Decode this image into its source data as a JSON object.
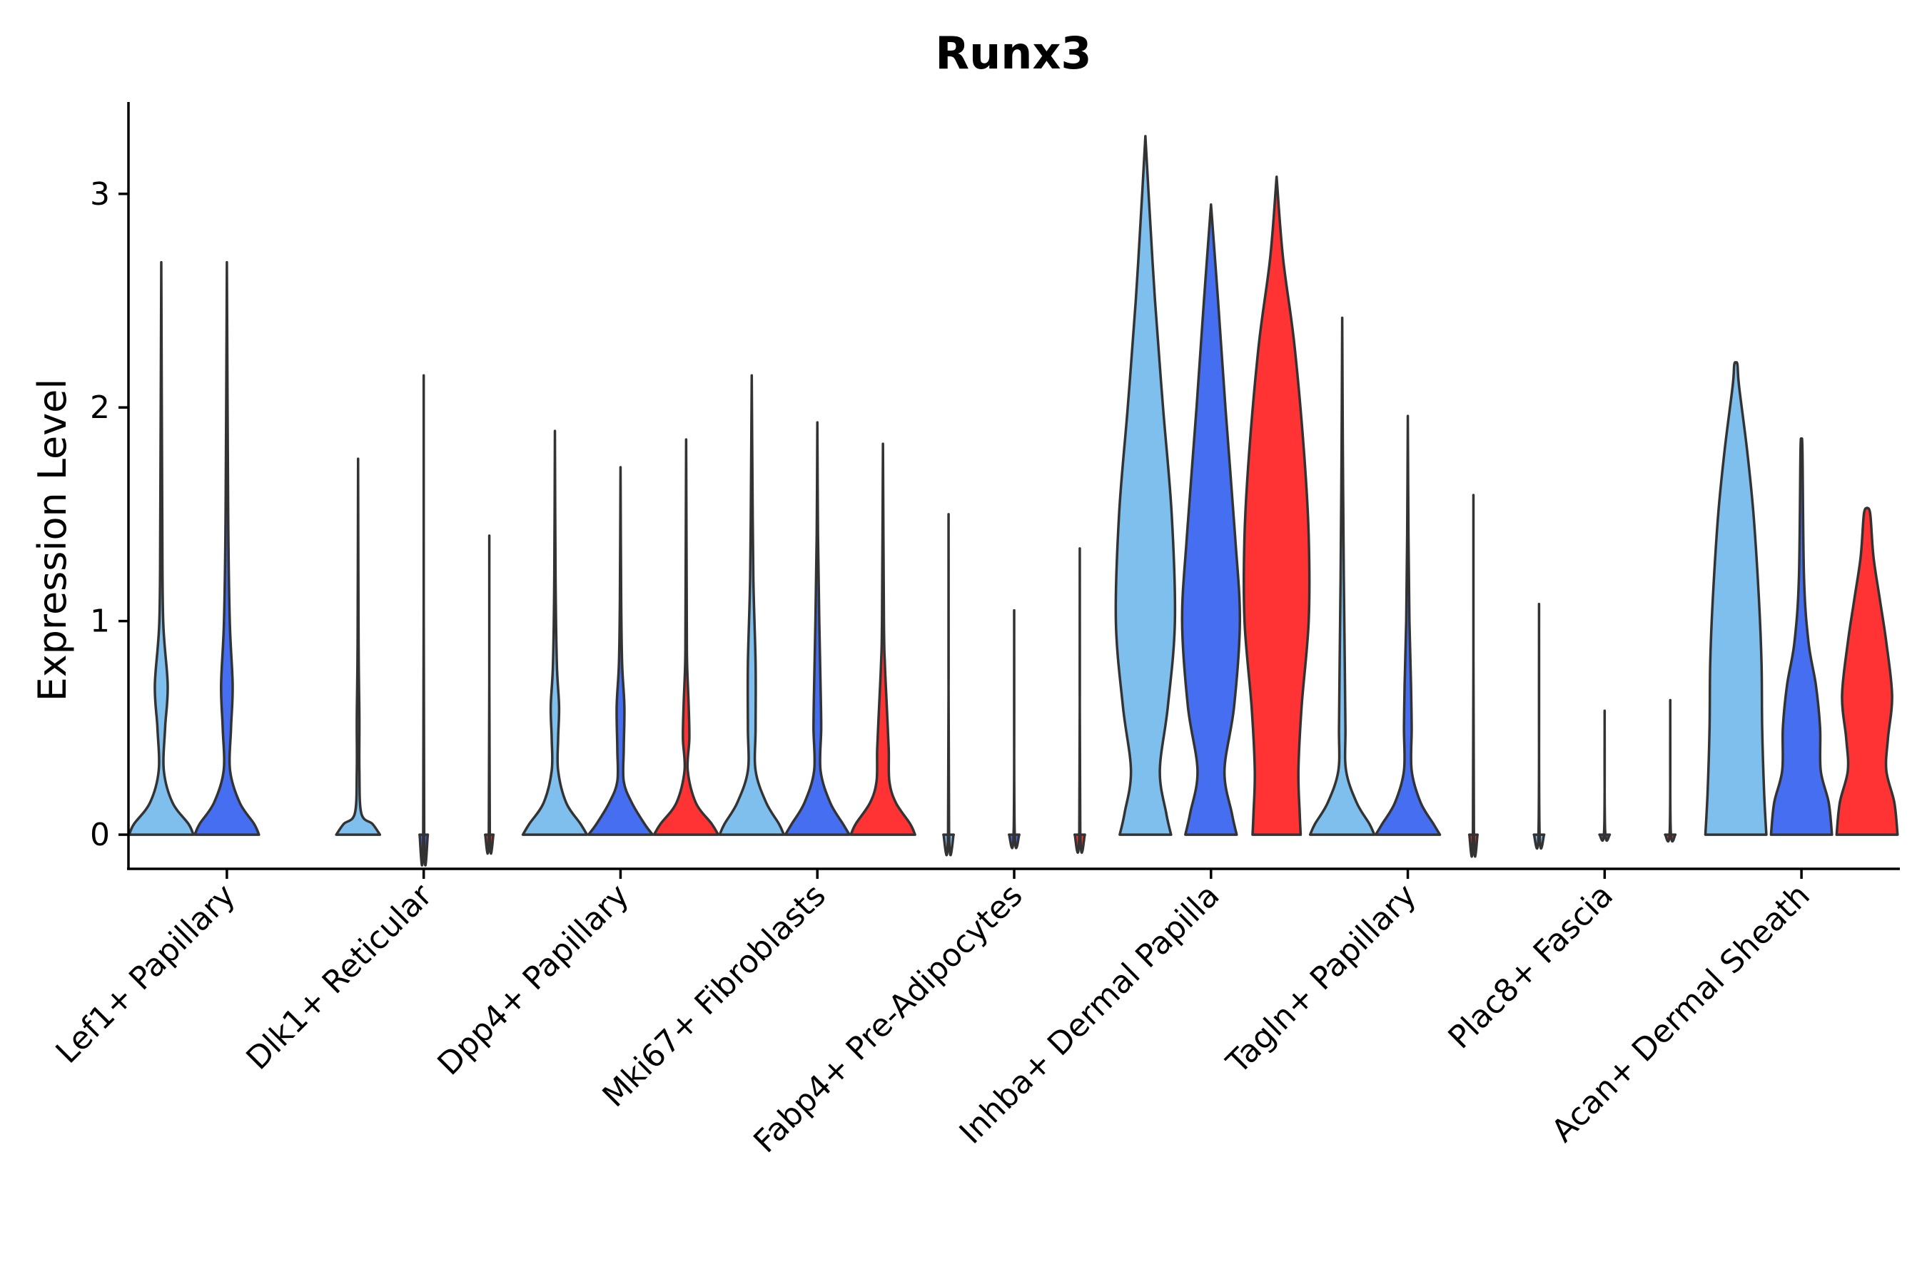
{
  "chart_data": {
    "type": "violin",
    "title": "Runx3",
    "xlabel": "",
    "ylabel": "Expression Level",
    "ylim": [
      -0.16,
      3.43
    ],
    "yticks": [
      0,
      1,
      2,
      3
    ],
    "grid": false,
    "legend": "none",
    "colors": [
      "#7fbfed",
      "#456ff0",
      "#ff3333"
    ],
    "categories": [
      "Lef1+ Papillary",
      "Dlk1+ Reticular",
      "Dpp4+ Papillary",
      "Mki67+ Fibroblasts",
      "Fabp4+ Pre-Adipocytes",
      "Inhba+ Dermal Papilla",
      "Tagln+ Papillary",
      "Plac8+ Fascia",
      "Acan+ Dermal Sheath"
    ],
    "violins": [
      {
        "category": "Lef1+ Papillary",
        "group": 0,
        "max": 2.68,
        "profile": [
          [
            0,
            1
          ],
          [
            0.05,
            0.85
          ],
          [
            0.15,
            0.35
          ],
          [
            0.3,
            0.08
          ],
          [
            0.5,
            0.12
          ],
          [
            0.7,
            0.2
          ],
          [
            1.0,
            0.06
          ],
          [
            1.5,
            0.03
          ],
          [
            2.68,
            0
          ]
        ]
      },
      {
        "category": "Lef1+ Papillary",
        "group": 1,
        "max": 2.68,
        "profile": [
          [
            0,
            1
          ],
          [
            0.05,
            0.85
          ],
          [
            0.15,
            0.4
          ],
          [
            0.3,
            0.1
          ],
          [
            0.5,
            0.13
          ],
          [
            0.7,
            0.18
          ],
          [
            1.0,
            0.09
          ],
          [
            1.5,
            0.04
          ],
          [
            2.68,
            0
          ]
        ]
      },
      {
        "category": "Dlk1+ Reticular",
        "group": 0,
        "max": 1.76,
        "profile": [
          [
            0,
            0.68
          ],
          [
            0.05,
            0.45
          ],
          [
            0.1,
            0.1
          ],
          [
            0.3,
            0.04
          ],
          [
            0.55,
            0.04
          ],
          [
            0.9,
            0.015
          ],
          [
            1.76,
            0
          ]
        ]
      },
      {
        "category": "Dlk1+ Reticular",
        "group": 1,
        "max": 2.15,
        "profile": [
          [
            0,
            0.13
          ],
          [
            0.02,
            0.015
          ],
          [
            2.15,
            0
          ]
        ]
      },
      {
        "category": "Dlk1+ Reticular",
        "group": 2,
        "max": 1.4,
        "profile": [
          [
            0,
            0.13
          ],
          [
            0.02,
            0.015
          ],
          [
            1.4,
            0
          ]
        ]
      },
      {
        "category": "Dpp4+ Papillary",
        "group": 0,
        "max": 1.89,
        "profile": [
          [
            0,
            1
          ],
          [
            0.05,
            0.8
          ],
          [
            0.15,
            0.35
          ],
          [
            0.3,
            0.1
          ],
          [
            0.45,
            0.1
          ],
          [
            0.6,
            0.13
          ],
          [
            0.8,
            0.06
          ],
          [
            1.2,
            0.02
          ],
          [
            1.89,
            0
          ]
        ]
      },
      {
        "category": "Dpp4+ Papillary",
        "group": 1,
        "max": 1.72,
        "profile": [
          [
            0,
            1
          ],
          [
            0.05,
            0.75
          ],
          [
            0.15,
            0.35
          ],
          [
            0.25,
            0.1
          ],
          [
            0.4,
            0.1
          ],
          [
            0.6,
            0.12
          ],
          [
            0.8,
            0.05
          ],
          [
            1.1,
            0.02
          ],
          [
            1.72,
            0
          ]
        ]
      },
      {
        "category": "Dpp4+ Papillary",
        "group": 2,
        "max": 1.85,
        "profile": [
          [
            0,
            1
          ],
          [
            0.05,
            0.8
          ],
          [
            0.15,
            0.3
          ],
          [
            0.3,
            0.05
          ],
          [
            0.45,
            0.1
          ],
          [
            0.6,
            0.08
          ],
          [
            0.8,
            0.03
          ],
          [
            1.0,
            0.02
          ],
          [
            1.85,
            0
          ]
        ]
      },
      {
        "category": "Mki67+ Fibroblasts",
        "group": 0,
        "max": 2.15,
        "profile": [
          [
            0,
            1
          ],
          [
            0.05,
            0.85
          ],
          [
            0.15,
            0.45
          ],
          [
            0.3,
            0.12
          ],
          [
            0.5,
            0.12
          ],
          [
            0.8,
            0.12
          ],
          [
            1.2,
            0.05
          ],
          [
            1.7,
            0.02
          ],
          [
            2.15,
            0
          ]
        ]
      },
      {
        "category": "Mki67+ Fibroblasts",
        "group": 1,
        "max": 1.93,
        "profile": [
          [
            0,
            1
          ],
          [
            0.05,
            0.8
          ],
          [
            0.15,
            0.4
          ],
          [
            0.3,
            0.1
          ],
          [
            0.5,
            0.12
          ],
          [
            0.7,
            0.1
          ],
          [
            1.0,
            0.06
          ],
          [
            1.4,
            0.02
          ],
          [
            1.93,
            0
          ]
        ]
      },
      {
        "category": "Mki67+ Fibroblasts",
        "group": 2,
        "max": 1.83,
        "profile": [
          [
            0,
            1
          ],
          [
            0.05,
            0.85
          ],
          [
            0.15,
            0.4
          ],
          [
            0.25,
            0.2
          ],
          [
            0.4,
            0.18
          ],
          [
            0.6,
            0.12
          ],
          [
            0.8,
            0.06
          ],
          [
            1.0,
            0.03
          ],
          [
            1.83,
            0
          ]
        ]
      },
      {
        "category": "Fabp4+ Pre-Adipocytes",
        "group": 0,
        "max": 1.5,
        "profile": [
          [
            0,
            0.16
          ],
          [
            0.02,
            0.015
          ],
          [
            1.5,
            0
          ]
        ]
      },
      {
        "category": "Fabp4+ Pre-Adipocytes",
        "group": 1,
        "max": 1.05,
        "profile": [
          [
            0,
            0.16
          ],
          [
            0.02,
            0.015
          ],
          [
            1.05,
            0
          ]
        ]
      },
      {
        "category": "Fabp4+ Pre-Adipocytes",
        "group": 2,
        "max": 1.34,
        "profile": [
          [
            0,
            0.16
          ],
          [
            0.02,
            0.015
          ],
          [
            1.34,
            0
          ]
        ]
      },
      {
        "category": "Inhba+ Dermal Papilla",
        "group": 0,
        "max": 3.27,
        "profile": [
          [
            0,
            0.8
          ],
          [
            0.1,
            0.65
          ],
          [
            0.3,
            0.45
          ],
          [
            0.6,
            0.7
          ],
          [
            1.0,
            0.92
          ],
          [
            1.5,
            0.82
          ],
          [
            2.0,
            0.55
          ],
          [
            2.5,
            0.3
          ],
          [
            3.0,
            0.1
          ],
          [
            3.27,
            0
          ]
        ]
      },
      {
        "category": "Inhba+ Dermal Papilla",
        "group": 1,
        "max": 2.95,
        "profile": [
          [
            0,
            0.8
          ],
          [
            0.1,
            0.65
          ],
          [
            0.3,
            0.42
          ],
          [
            0.6,
            0.72
          ],
          [
            1.0,
            0.9
          ],
          [
            1.4,
            0.75
          ],
          [
            2.0,
            0.45
          ],
          [
            2.5,
            0.22
          ],
          [
            2.95,
            0
          ]
        ]
      },
      {
        "category": "Inhba+ Dermal Papilla",
        "group": 2,
        "max": 3.08,
        "profile": [
          [
            0,
            0.75
          ],
          [
            0.1,
            0.72
          ],
          [
            0.3,
            0.68
          ],
          [
            0.6,
            0.78
          ],
          [
            1.0,
            1.0
          ],
          [
            1.4,
            1.0
          ],
          [
            1.8,
            0.85
          ],
          [
            2.3,
            0.55
          ],
          [
            2.7,
            0.2
          ],
          [
            3.08,
            0
          ]
        ]
      },
      {
        "category": "Tagln+ Papillary",
        "group": 0,
        "max": 2.42,
        "profile": [
          [
            0,
            1
          ],
          [
            0.05,
            0.85
          ],
          [
            0.15,
            0.45
          ],
          [
            0.3,
            0.12
          ],
          [
            0.5,
            0.1
          ],
          [
            0.8,
            0.08
          ],
          [
            1.2,
            0.05
          ],
          [
            1.8,
            0.02
          ],
          [
            2.42,
            0
          ]
        ]
      },
      {
        "category": "Tagln+ Papillary",
        "group": 1,
        "max": 1.96,
        "profile": [
          [
            0,
            1
          ],
          [
            0.05,
            0.8
          ],
          [
            0.15,
            0.4
          ],
          [
            0.3,
            0.12
          ],
          [
            0.5,
            0.12
          ],
          [
            0.7,
            0.1
          ],
          [
            1.0,
            0.05
          ],
          [
            1.4,
            0.02
          ],
          [
            1.96,
            0
          ]
        ]
      },
      {
        "category": "Tagln+ Papillary",
        "group": 2,
        "max": 1.59,
        "profile": [
          [
            0,
            0.13
          ],
          [
            0.02,
            0.015
          ],
          [
            1.59,
            0
          ]
        ]
      },
      {
        "category": "Plac8+ Fascia",
        "group": 0,
        "max": 1.08,
        "profile": [
          [
            0,
            0.16
          ],
          [
            0.02,
            0.015
          ],
          [
            1.08,
            0
          ]
        ]
      },
      {
        "category": "Plac8+ Fascia",
        "group": 1,
        "max": 0.58,
        "profile": [
          [
            0,
            0.16
          ],
          [
            0.02,
            0.015
          ],
          [
            0.58,
            0
          ]
        ]
      },
      {
        "category": "Plac8+ Fascia",
        "group": 2,
        "max": 0.63,
        "profile": [
          [
            0,
            0.16
          ],
          [
            0.02,
            0.015
          ],
          [
            0.63,
            0
          ]
        ]
      },
      {
        "category": "Acan+ Dermal Sheath",
        "group": 0,
        "max": 2.21,
        "profile": [
          [
            0,
            0.95
          ],
          [
            0.2,
            0.88
          ],
          [
            0.5,
            0.82
          ],
          [
            0.8,
            0.8
          ],
          [
            1.1,
            0.72
          ],
          [
            1.5,
            0.55
          ],
          [
            1.8,
            0.35
          ],
          [
            2.1,
            0.1
          ],
          [
            2.2,
            0.05
          ],
          [
            2.21,
            0
          ]
        ]
      },
      {
        "category": "Acan+ Dermal Sheath",
        "group": 1,
        "max": 1.83,
        "profile": [
          [
            0,
            0.95
          ],
          [
            0.15,
            0.85
          ],
          [
            0.3,
            0.6
          ],
          [
            0.5,
            0.58
          ],
          [
            0.7,
            0.45
          ],
          [
            0.9,
            0.22
          ],
          [
            1.2,
            0.08
          ],
          [
            1.8,
            0.03
          ],
          [
            1.83,
            0
          ]
        ]
      },
      {
        "category": "Acan+ Dermal Sheath",
        "group": 2,
        "max": 1.53,
        "profile": [
          [
            0,
            0.95
          ],
          [
            0.15,
            0.85
          ],
          [
            0.3,
            0.6
          ],
          [
            0.45,
            0.65
          ],
          [
            0.65,
            0.78
          ],
          [
            0.9,
            0.6
          ],
          [
            1.1,
            0.4
          ],
          [
            1.3,
            0.2
          ],
          [
            1.5,
            0.1
          ],
          [
            1.53,
            0
          ]
        ]
      }
    ]
  }
}
